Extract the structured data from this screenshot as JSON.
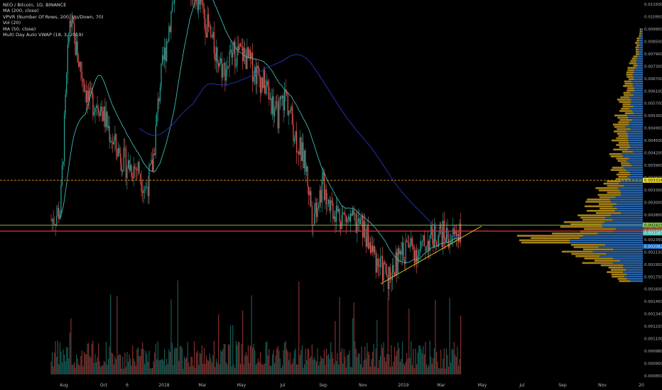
{
  "legend": {
    "symbol_line": "NEO / Bitcoin, 1D, BINANCE",
    "indicators": [
      "MA (200, close)",
      "VPVR (Number Of Rows, 200, Up/Down, 70)",
      "Vol (20)",
      "MA (50, close)",
      "Multi Day Auto VWAP (18, 3, 2019)"
    ]
  },
  "colors": {
    "background": "#000000",
    "candle_up": "#26a69a",
    "candle_down": "#ef5350",
    "ma50": "#3fb8b0",
    "ma200": "#2a35b8",
    "trendline": "#e5b814",
    "dashed_line": "#e5a21e",
    "red_line": "#d32f2f",
    "green_line": "#8bc34a",
    "vpvr_up": "#2d6db5",
    "vpvr_down": "#b8901c",
    "axis_text": "#b2b5be"
  },
  "chart_data": {
    "type": "candlestick",
    "x_axis_labels": [
      "Aug",
      "Oct",
      "6",
      "2018",
      "Mar",
      "May",
      "Jul",
      "Sep",
      "Nov",
      "2019",
      "Mar",
      "May",
      "Jul",
      "Sep",
      "Nov",
      "20"
    ],
    "y_axis_labels": [
      "0.011500",
      "0.010950",
      "0.009950",
      "0.008500",
      "0.007900",
      "0.007300",
      "0.006700",
      "0.006100",
      "0.005700",
      "0.005300",
      "0.004900",
      "0.004500",
      "0.004200",
      "0.003900",
      "0.003600",
      "0.003300",
      "0.003000",
      "0.002800",
      "0.002600",
      "0.002350",
      "0.002150",
      "0.001950",
      "0.001750",
      "0.001600",
      "0.001450",
      "0.001340",
      "0.001220",
      "0.001100",
      "0.000980",
      "0.000900",
      "0.000850"
    ],
    "y_scale": "log",
    "price_markers": [
      {
        "label": "0.003316",
        "value": 0.003316,
        "bg": "#f2e322",
        "fg": "#000000"
      },
      {
        "label": "0.002419",
        "value": 0.002419,
        "bg": "#8bc34a",
        "fg": "#000000"
      },
      {
        "label": "0.002323",
        "value": 0.002323,
        "bg": "#b08a1a",
        "fg": "#ffffff"
      },
      {
        "label": "0.002315",
        "value": 0.002315,
        "bg": "#d32f2f",
        "fg": "#ffffff"
      },
      {
        "label": "0.002287",
        "value": 0.002287,
        "bg": "#3fb8b0",
        "fg": "#ffffff"
      },
      {
        "label": "0.002082",
        "value": 0.002082,
        "bg": "#1565c0",
        "fg": "#ffffff"
      }
    ],
    "series": [
      {
        "name": "MA (50, close)"
      },
      {
        "name": "MA (200, close)"
      },
      {
        "name": "Multi Day Auto VWAP (18, 3, 2019)"
      }
    ],
    "grid": false
  }
}
